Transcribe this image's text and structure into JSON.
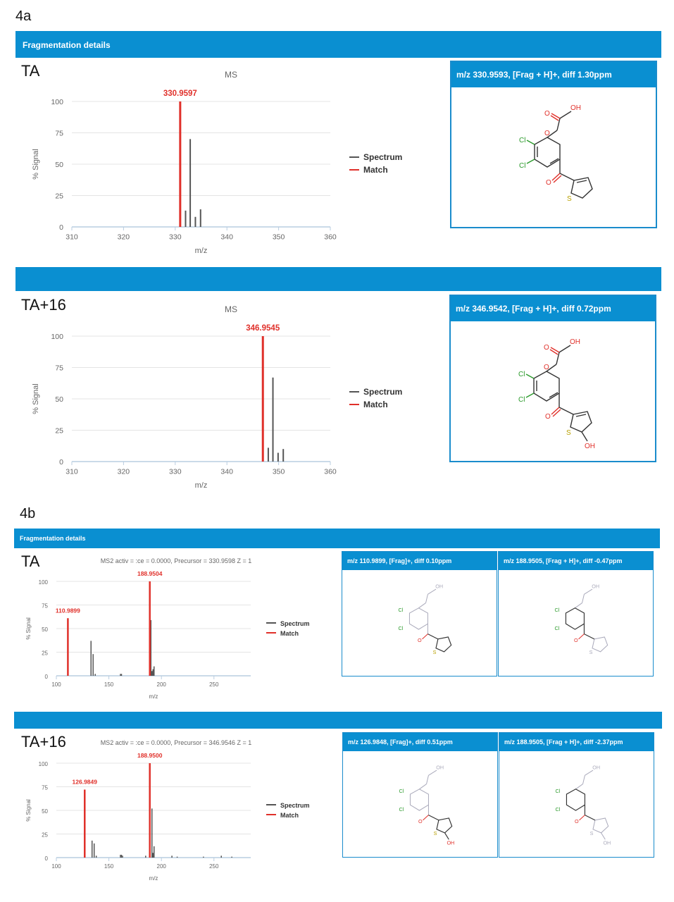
{
  "fig_4a_label": "4a",
  "fig_4b_label": "4b",
  "header_4a": "Fragmentation details",
  "header_4b": "Fragmentation details",
  "colors": {
    "bar_blue": "#0a8fd1",
    "match_red": "#e0302a",
    "spectrum_gray": "#555555",
    "axis_line": "#b9cde0"
  },
  "a_ta": {
    "label": "TA",
    "struct_title": "m/z 330.9593, [Frag + H]+, diff 1.30ppm"
  },
  "a_ta16": {
    "label": "TA+16",
    "struct_title": "m/z 346.9542, [Frag + H]+, diff 0.72ppm"
  },
  "b_ta": {
    "label": "TA",
    "struct1_title": "m/z 110.9899, [Frag]+, diff 0.10ppm",
    "struct2_title": "m/z 188.9505, [Frag + H]+, diff -0.47ppm"
  },
  "b_ta16": {
    "label": "TA+16",
    "struct1_title": "m/z 126.9848, [Frag]+, diff 0.51ppm",
    "struct2_title": "m/z 188.9505, [Frag + H]+, diff -2.37ppm"
  },
  "chart_data": [
    {
      "type": "bar",
      "title": "MS",
      "xlabel": "m/z",
      "ylabel": "% Signal",
      "xlim": [
        310,
        360
      ],
      "ylim": [
        0,
        100
      ],
      "xticks": [
        310,
        320,
        330,
        340,
        350,
        360
      ],
      "xtick_labels": [
        "310",
        "320",
        "330",
        "340",
        "350",
        "360"
      ],
      "yticks": [
        0,
        25,
        50,
        75,
        100
      ],
      "ytick_labels": [
        "0",
        "25",
        "50",
        "75",
        "100"
      ],
      "legend": [
        "Spectrum",
        "Match"
      ],
      "legend_position": "right",
      "series": [
        {
          "name": "Spectrum",
          "x": [
            332.0,
            332.9,
            333.9,
            334.9
          ],
          "values": [
            13,
            70,
            8,
            14
          ]
        },
        {
          "name": "Match",
          "x": [
            330.9597
          ],
          "values": [
            100
          ],
          "labels": [
            "330.9597"
          ]
        }
      ]
    },
    {
      "type": "bar",
      "title": "MS",
      "xlabel": "m/z",
      "ylabel": "% Signal",
      "xlim": [
        310,
        360
      ],
      "ylim": [
        0,
        100
      ],
      "xticks": [
        310,
        320,
        330,
        340,
        350,
        360
      ],
      "xtick_labels": [
        "310",
        "320",
        "330",
        "340",
        "350",
        "360"
      ],
      "yticks": [
        0,
        25,
        50,
        75,
        100
      ],
      "ytick_labels": [
        "0",
        "25",
        "50",
        "75",
        "100"
      ],
      "legend": [
        "Spectrum",
        "Match"
      ],
      "legend_position": "right",
      "series": [
        {
          "name": "Spectrum",
          "x": [
            348.0,
            348.9,
            349.9,
            350.9
          ],
          "values": [
            11,
            67,
            7,
            10
          ]
        },
        {
          "name": "Match",
          "x": [
            346.9545
          ],
          "values": [
            100
          ],
          "labels": [
            "346.9545"
          ]
        }
      ]
    },
    {
      "type": "bar",
      "title": "MS2 activ = :ce = 0.0000, Precursor = 330.9598 Z = 1",
      "xlabel": "m/z",
      "ylabel": "% Signal",
      "xlim": [
        100,
        285
      ],
      "ylim": [
        0,
        100
      ],
      "xticks": [
        100,
        150,
        200,
        250
      ],
      "xtick_labels": [
        "100",
        "150",
        "200",
        "250"
      ],
      "yticks": [
        0,
        25,
        50,
        75,
        100
      ],
      "ytick_labels": [
        "0",
        "25",
        "50",
        "75",
        "100"
      ],
      "legend": [
        "Spectrum",
        "Match"
      ],
      "legend_position": "right",
      "series": [
        {
          "name": "Spectrum",
          "x": [
            133,
            135,
            137,
            161,
            162,
            190,
            191,
            192,
            193
          ],
          "values": [
            37,
            23,
            2,
            2,
            2,
            59,
            5,
            7,
            10
          ]
        },
        {
          "name": "Match",
          "x": [
            110.9899,
            188.9504
          ],
          "values": [
            61,
            100
          ],
          "labels": [
            "110.9899",
            "188.9504"
          ]
        }
      ]
    },
    {
      "type": "bar",
      "title": "MS2 activ = :ce = 0.0000, Precursor = 346.9546 Z = 1",
      "xlabel": "m/z",
      "ylabel": "% Signal",
      "xlim": [
        100,
        285
      ],
      "ylim": [
        0,
        100
      ],
      "xticks": [
        100,
        150,
        200,
        250
      ],
      "xtick_labels": [
        "100",
        "150",
        "200",
        "250"
      ],
      "yticks": [
        0,
        25,
        50,
        75,
        100
      ],
      "ytick_labels": [
        "0",
        "25",
        "50",
        "75",
        "100"
      ],
      "legend": [
        "Spectrum",
        "Match"
      ],
      "legend_position": "right",
      "series": [
        {
          "name": "Spectrum",
          "x": [
            134,
            136,
            138,
            161,
            162,
            163,
            185,
            191,
            192,
            193,
            210,
            215,
            240,
            257,
            267
          ],
          "values": [
            18,
            15,
            2,
            3,
            3,
            2,
            2,
            52,
            5,
            12,
            2,
            1,
            1,
            2,
            1
          ]
        },
        {
          "name": "Match",
          "x": [
            126.9849,
            188.95
          ],
          "values": [
            72,
            100
          ],
          "labels": [
            "126.9849",
            "188.9500"
          ]
        }
      ]
    }
  ]
}
